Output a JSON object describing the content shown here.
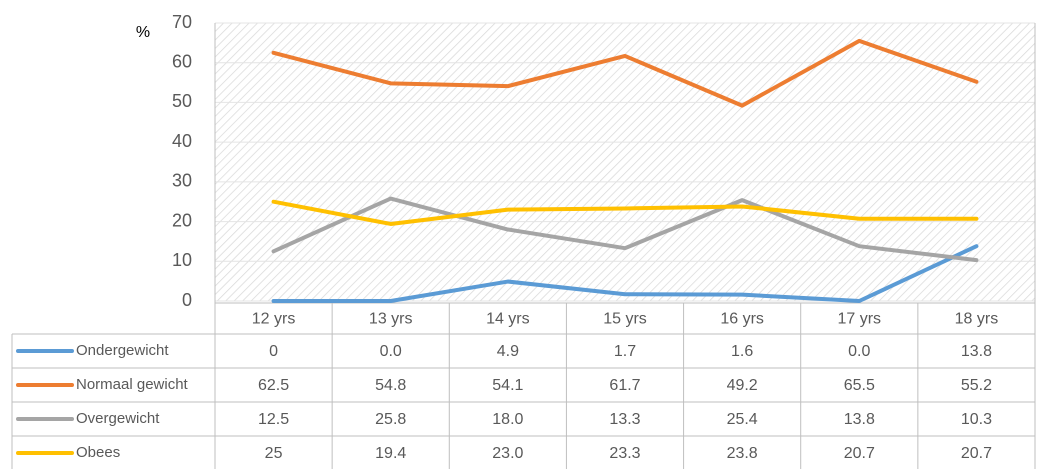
{
  "chart_data": {
    "type": "line",
    "y_label": "%",
    "categories": [
      "12 yrs",
      "13 yrs",
      "14 yrs",
      "15 yrs",
      "16 yrs",
      "17 yrs",
      "18 yrs"
    ],
    "series": [
      {
        "name": "Ondergewicht",
        "color": "#5b9bd5",
        "values": [
          0,
          0,
          4.9,
          1.7,
          1.6,
          0,
          13.8
        ],
        "value_labels": [
          "0",
          "0.0",
          "4.9",
          "1.7",
          "1.6",
          "0.0",
          "13.8"
        ]
      },
      {
        "name": "Normaal gewicht",
        "color": "#ed7d31",
        "values": [
          62.5,
          54.8,
          54.1,
          61.7,
          49.2,
          65.5,
          55.2
        ]
      },
      {
        "name": "Overgewicht",
        "color": "#a5a5a5",
        "values": [
          12.5,
          25.8,
          18,
          13.3,
          25.4,
          13.8,
          10.3
        ],
        "value_labels": [
          "12.5",
          "25.8",
          "18.0",
          "13.3",
          "25.4",
          "13.8",
          "10.3"
        ]
      },
      {
        "name": "Obees",
        "color": "#ffc000",
        "values": [
          25,
          19.4,
          23,
          23.3,
          23.8,
          20.7,
          20.7
        ],
        "value_labels": [
          "25",
          "19.4",
          "23.0",
          "23.3",
          "23.8",
          "20.7",
          "20.7"
        ]
      }
    ],
    "ylim": [
      0,
      70
    ],
    "yticks": [
      0,
      10,
      20,
      30,
      40,
      50,
      60,
      70
    ],
    "grid": true
  }
}
